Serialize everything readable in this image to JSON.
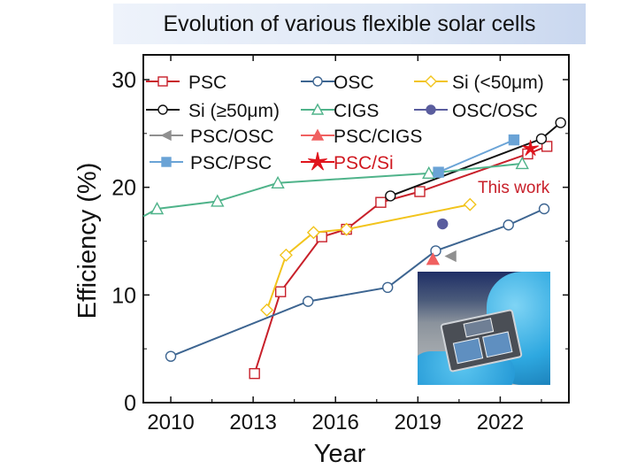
{
  "banner_title": "Evolution of various flexible solar cells",
  "annotation": "This work",
  "chart_data": {
    "type": "line",
    "xlabel": "Year",
    "ylabel": "Efficiency (%)",
    "xlim": [
      2009.0,
      2024.5
    ],
    "ylim": [
      0,
      32.3
    ],
    "xticks": [
      2010,
      2013,
      2016,
      2019,
      2022
    ],
    "yticks": [
      0,
      10,
      20,
      30
    ],
    "grid": false,
    "legend_placement": "top-left",
    "series": [
      {
        "name": "PSC",
        "color": "#c8202a",
        "marker": "square-open",
        "line": true,
        "x": [
          2013.05,
          2014.0,
          2015.5,
          2016.4,
          2017.65,
          2019.07,
          2023.0,
          2023.7
        ],
        "y": [
          2.7,
          10.3,
          15.4,
          16.1,
          18.6,
          19.6,
          23.1,
          23.8
        ]
      },
      {
        "name": "OSC",
        "color": "#3d6591",
        "marker": "circle-open",
        "line": true,
        "x": [
          2010.0,
          2015.0,
          2017.9,
          2019.65,
          2022.3,
          2023.6
        ],
        "y": [
          4.3,
          9.4,
          10.7,
          14.1,
          16.5,
          18.0
        ]
      },
      {
        "name": "Si (<50μm)",
        "color": "#f2c41c",
        "marker": "diamond-open",
        "line": true,
        "x": [
          2013.5,
          2014.2,
          2015.2,
          2016.4,
          2020.9
        ],
        "y": [
          8.6,
          13.7,
          15.8,
          16.1,
          18.4
        ]
      },
      {
        "name": "Si (≥50μm)",
        "color": "#111111",
        "marker": "circle-open",
        "line": true,
        "x": [
          2018.0,
          2023.5,
          2024.2
        ],
        "y": [
          19.2,
          24.5,
          26.0
        ]
      },
      {
        "name": "CIGS",
        "color": "#4fb38a",
        "marker": "triangle-open",
        "line": true,
        "x": [
          2009.0,
          2009.5,
          2011.7,
          2013.9,
          2019.4,
          2022.8
        ],
        "y": [
          17.3,
          18.0,
          18.7,
          20.4,
          21.3,
          22.2
        ]
      },
      {
        "name": "OSC/OSC",
        "color": "#5a5d9e",
        "marker": "circle-filled",
        "line": false,
        "x": [
          2019.9
        ],
        "y": [
          16.6
        ]
      },
      {
        "name": "PSC/OSC",
        "color": "#909090",
        "marker": "triangle-left-filled",
        "line": false,
        "x": [
          2020.2
        ],
        "y": [
          13.6
        ]
      },
      {
        "name": "PSC/CIGS",
        "color": "#f06060",
        "marker": "triangle-filled",
        "line": false,
        "x": [
          2019.55
        ],
        "y": [
          13.3
        ]
      },
      {
        "name": "PSC/PSC",
        "color": "#6aa3d6",
        "marker": "square-filled",
        "line": true,
        "x": [
          2019.75,
          2022.5
        ],
        "y": [
          21.4,
          24.4
        ]
      },
      {
        "name": "PSC/Si",
        "color": "#e0141c",
        "marker": "star-filled",
        "line": false,
        "x": [
          2023.1
        ],
        "y": [
          23.6
        ]
      }
    ]
  }
}
